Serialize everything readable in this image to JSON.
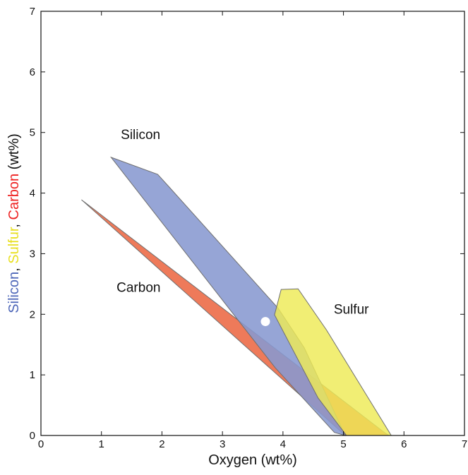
{
  "chart_data": {
    "type": "area",
    "xlabel": "Oxygen (wt%)",
    "ylabel_parts": [
      {
        "text": "Silicon",
        "color": "#4d66b8"
      },
      {
        "text": ", ",
        "color": "#111111"
      },
      {
        "text": "Sulfur",
        "color": "#e8e021"
      },
      {
        "text": ", ",
        "color": "#111111"
      },
      {
        "text": "Carbon",
        "color": "#ee2222"
      },
      {
        "text": " (wt%)",
        "color": "#111111"
      }
    ],
    "xlim": [
      0,
      7
    ],
    "ylim": [
      0,
      7
    ],
    "xticks": [
      "0",
      "1",
      "2",
      "3",
      "4",
      "5",
      "6",
      "7"
    ],
    "yticks": [
      "0",
      "1",
      "2",
      "3",
      "4",
      "5",
      "6",
      "7"
    ],
    "grid": false,
    "series": [
      {
        "name": "Carbon",
        "color": "#ee7a5a",
        "opacity": 1.0,
        "polygon": [
          [
            0.67,
            3.89
          ],
          [
            5.03,
            0.0
          ],
          [
            5.75,
            0.0
          ],
          [
            5.65,
            0.07
          ]
        ],
        "label_at": [
          1.25,
          2.37
        ]
      },
      {
        "name": "Silicon",
        "color": "#8898d0",
        "opacity": 0.88,
        "polygon": [
          [
            1.16,
            4.59
          ],
          [
            1.93,
            4.31
          ],
          [
            2.12,
            4.1
          ],
          [
            3.92,
            2.1
          ],
          [
            4.35,
            1.45
          ],
          [
            5.03,
            0.0
          ],
          [
            4.85,
            0.05
          ],
          [
            3.87,
            1.12
          ]
        ],
        "label_at": [
          1.32,
          4.89
        ]
      },
      {
        "name": "Sulfur",
        "color": "#eeea55",
        "opacity": 0.82,
        "polygon": [
          [
            3.97,
            2.41
          ],
          [
            4.25,
            2.42
          ],
          [
            4.72,
            1.74
          ],
          [
            5.79,
            0.0
          ],
          [
            5.05,
            0.0
          ],
          [
            4.58,
            0.62
          ],
          [
            3.86,
            1.99
          ]
        ],
        "label_at": [
          4.84,
          2.01
        ]
      }
    ],
    "marker": {
      "x": 3.71,
      "y": 1.88,
      "color": "#ffffff"
    }
  }
}
